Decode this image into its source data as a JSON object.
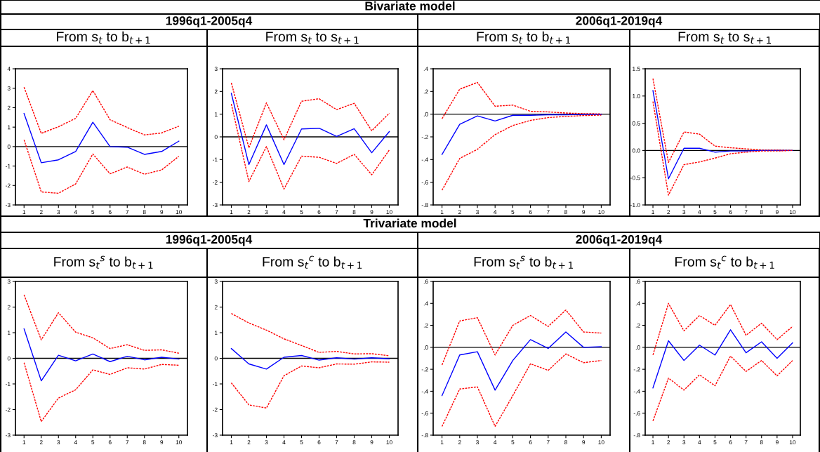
{
  "chart_data": [
    {
      "type": "line",
      "title": "From s$_{t}$ to b$_{t+1}$",
      "annotations": [
        "Bivariate model",
        "1996q1-2005q4"
      ],
      "categories": [
        "1",
        "2",
        "3",
        "4",
        "5",
        "6",
        "7",
        "8",
        "9",
        "10"
      ],
      "ylim": [
        -3,
        4
      ],
      "yticks": [
        -3,
        -2,
        -1,
        0,
        1,
        2,
        3,
        4
      ],
      "grid": false,
      "ref_lines": [
        {
          "axis": "y",
          "value": 0,
          "color": "#000000"
        }
      ],
      "series": [
        {
          "color": "#ff0000",
          "line_style": "dashed",
          "values": [
            3.05,
            0.68,
            1.02,
            1.45,
            2.88,
            1.38,
            0.98,
            0.6,
            0.7,
            1.05
          ]
        },
        {
          "color": "#0000ff",
          "line_style": "solid",
          "values": [
            1.7,
            -0.83,
            -0.68,
            -0.25,
            1.25,
            0,
            -0.03,
            -0.4,
            -0.25,
            0.28
          ]
        },
        {
          "color": "#ff0000",
          "line_style": "dashed",
          "values": [
            0.35,
            -2.33,
            -2.4,
            -1.92,
            -0.38,
            -1.4,
            -1.05,
            -1.42,
            -1.2,
            -0.5
          ]
        }
      ]
    },
    {
      "type": "line",
      "title": "From s$_{t}$ to s$_{t+1}$",
      "categories": [
        "1",
        "2",
        "3",
        "4",
        "5",
        "6",
        "7",
        "8",
        "9",
        "10"
      ],
      "ylim": [
        -3,
        3
      ],
      "yticks": [
        -3,
        -2,
        -1,
        0,
        1,
        2,
        3
      ],
      "grid": false,
      "ref_lines": [
        {
          "axis": "y",
          "value": 0,
          "color": "#000000"
        }
      ],
      "series": [
        {
          "color": "#ff0000",
          "line_style": "dashed",
          "values": [
            2.38,
            -0.48,
            1.5,
            -0.13,
            1.57,
            1.68,
            1.2,
            1.48,
            0.27,
            1.04
          ]
        },
        {
          "color": "#0000ff",
          "line_style": "solid",
          "values": [
            1.92,
            -1.22,
            0.53,
            -1.22,
            0.35,
            0.38,
            0.02,
            0.36,
            -0.7,
            0.23
          ]
        },
        {
          "color": "#ff0000",
          "line_style": "dashed",
          "values": [
            1.45,
            -1.97,
            -0.43,
            -2.3,
            -0.85,
            -0.9,
            -1.17,
            -0.77,
            -1.67,
            -0.58
          ]
        }
      ]
    },
    {
      "type": "line",
      "title": "From s$_{t}$ to b$_{t+1}$",
      "annotations": [
        "2006q1-2019q4"
      ],
      "categories": [
        "1",
        "2",
        "3",
        "4",
        "5",
        "6",
        "7",
        "8",
        "9",
        "10"
      ],
      "ylim": [
        -0.8,
        0.4
      ],
      "yticks": [
        {
          "value": -0.8,
          "label": "-.8"
        },
        {
          "value": -0.6,
          "label": "-.6"
        },
        {
          "value": -0.4,
          "label": "-.4"
        },
        {
          "value": -0.2,
          "label": "-.2"
        },
        {
          "value": 0,
          "label": ".0"
        },
        {
          "value": 0.2,
          "label": ".2"
        },
        {
          "value": 0.4,
          "label": ".4"
        }
      ],
      "grid": false,
      "ref_lines": [
        {
          "axis": "y",
          "value": 0,
          "color": "#000000"
        }
      ],
      "series": [
        {
          "color": "#ff0000",
          "line_style": "dashed",
          "values": [
            -0.04,
            0.22,
            0.28,
            0.07,
            0.08,
            0.025,
            0.02,
            0.01,
            0.005,
            0.003
          ]
        },
        {
          "color": "#0000ff",
          "line_style": "solid",
          "values": [
            -0.355,
            -0.09,
            -0.015,
            -0.06,
            -0.01,
            -0.01,
            -0.005,
            -0.005,
            -0.003,
            -0.002
          ]
        },
        {
          "color": "#ff0000",
          "line_style": "dashed",
          "values": [
            -0.67,
            -0.39,
            -0.31,
            -0.18,
            -0.1,
            -0.055,
            -0.03,
            -0.02,
            -0.012,
            -0.008
          ]
        }
      ]
    },
    {
      "type": "line",
      "title": "From s$_{t}$ to s$_{t+1}$",
      "categories": [
        "1",
        "2",
        "3",
        "4",
        "5",
        "6",
        "7",
        "8",
        "9",
        "10"
      ],
      "ylim": [
        -1.0,
        1.5
      ],
      "yticks": [
        {
          "value": -1.0,
          "label": "-1.0"
        },
        {
          "value": -0.5,
          "label": "-0.5"
        },
        {
          "value": 0,
          "label": "0.0"
        },
        {
          "value": 0.5,
          "label": "0.5"
        },
        {
          "value": 1.0,
          "label": "1.0"
        },
        {
          "value": 1.5,
          "label": "1.5"
        }
      ],
      "grid": false,
      "ref_lines": [
        {
          "axis": "y",
          "value": 0,
          "color": "#000000"
        }
      ],
      "series": [
        {
          "color": "#ff0000",
          "line_style": "dashed",
          "values": [
            1.32,
            -0.22,
            0.34,
            0.3,
            0.08,
            0.05,
            0.03,
            0.01,
            0.01,
            0
          ]
        },
        {
          "color": "#0000ff",
          "line_style": "solid",
          "values": [
            1.1,
            -0.52,
            0.04,
            0.04,
            -0.03,
            -0.01,
            -0.01,
            0,
            0,
            0
          ]
        },
        {
          "color": "#ff0000",
          "line_style": "dashed",
          "values": [
            0.9,
            -0.82,
            -0.26,
            -0.21,
            -0.14,
            -0.06,
            -0.03,
            -0.01,
            -0.01,
            0
          ]
        }
      ]
    },
    {
      "type": "line",
      "title": "From s$_{t}$$^{s}$ to b$_{t+1}$",
      "annotations": [
        "Trivariate model",
        "1996q1-2005q4"
      ],
      "categories": [
        "1",
        "2",
        "3",
        "4",
        "5",
        "6",
        "7",
        "8",
        "9",
        "10"
      ],
      "ylim": [
        -3,
        3
      ],
      "yticks": [
        -3,
        -2,
        -1,
        0,
        1,
        2,
        3
      ],
      "grid": false,
      "ref_lines": [
        {
          "axis": "y",
          "value": 0,
          "color": "#000000"
        }
      ],
      "series": [
        {
          "color": "#ff0000",
          "line_style": "dashed",
          "values": [
            2.48,
            0.72,
            1.78,
            1.02,
            0.8,
            0.38,
            0.53,
            0.31,
            0.33,
            0.2
          ]
        },
        {
          "color": "#0000ff",
          "line_style": "solid",
          "values": [
            1.15,
            -0.88,
            0.12,
            -0.1,
            0.17,
            -0.13,
            0.08,
            -0.06,
            0.04,
            -0.03
          ]
        },
        {
          "color": "#ff0000",
          "line_style": "dashed",
          "values": [
            -0.17,
            -2.47,
            -1.55,
            -1.23,
            -0.45,
            -0.63,
            -0.37,
            -0.42,
            -0.24,
            -0.27
          ]
        }
      ]
    },
    {
      "type": "line",
      "title": "From s$_{t}$$^{c}$ to b$_{t+1}$",
      "categories": [
        "1",
        "2",
        "3",
        "4",
        "5",
        "6",
        "7",
        "8",
        "9",
        "10"
      ],
      "ylim": [
        -3,
        3
      ],
      "yticks": [
        -3,
        -2,
        -1,
        0,
        1,
        2,
        3
      ],
      "grid": false,
      "ref_lines": [
        {
          "axis": "y",
          "value": 0,
          "color": "#000000"
        }
      ],
      "series": [
        {
          "color": "#ff0000",
          "line_style": "dashed",
          "values": [
            1.75,
            1.38,
            1.1,
            0.76,
            0.5,
            0.23,
            0.27,
            0.17,
            0.18,
            0.1
          ]
        },
        {
          "color": "#0000ff",
          "line_style": "solid",
          "values": [
            0.38,
            -0.22,
            -0.42,
            0.04,
            0.11,
            -0.07,
            0.02,
            -0.03,
            0.02,
            -0.02
          ]
        },
        {
          "color": "#ff0000",
          "line_style": "dashed",
          "values": [
            -0.96,
            -1.82,
            -1.94,
            -0.68,
            -0.3,
            -0.37,
            -0.22,
            -0.23,
            -0.14,
            -0.15
          ]
        }
      ]
    },
    {
      "type": "line",
      "title": "From s$_{t}$$^{s}$ to b$_{t+1}$",
      "annotations": [
        "2006q1-2019q4"
      ],
      "categories": [
        "1",
        "2",
        "3",
        "4",
        "5",
        "6",
        "7",
        "8",
        "9",
        "10"
      ],
      "ylim": [
        -0.8,
        0.6
      ],
      "yticks": [
        {
          "value": -0.8,
          "label": "-.8"
        },
        {
          "value": -0.6,
          "label": "-.6"
        },
        {
          "value": -0.4,
          "label": "-.4"
        },
        {
          "value": -0.2,
          "label": "-.2"
        },
        {
          "value": 0,
          "label": ".0"
        },
        {
          "value": 0.2,
          "label": ".2"
        },
        {
          "value": 0.4,
          "label": ".4"
        },
        {
          "value": 0.6,
          "label": ".6"
        }
      ],
      "grid": false,
      "ref_lines": [
        {
          "axis": "y",
          "value": 0,
          "color": "#000000"
        }
      ],
      "series": [
        {
          "color": "#ff0000",
          "line_style": "dashed",
          "values": [
            -0.16,
            0.24,
            0.27,
            -0.07,
            0.2,
            0.29,
            0.19,
            0.34,
            0.14,
            0.13
          ]
        },
        {
          "color": "#0000ff",
          "line_style": "solid",
          "values": [
            -0.44,
            -0.07,
            -0.04,
            -0.39,
            -0.12,
            0.07,
            -0.01,
            0.14,
            0,
            0.005
          ]
        },
        {
          "color": "#ff0000",
          "line_style": "dashed",
          "values": [
            -0.72,
            -0.38,
            -0.36,
            -0.72,
            -0.44,
            -0.15,
            -0.21,
            -0.06,
            -0.14,
            -0.12
          ]
        }
      ]
    },
    {
      "type": "line",
      "title": "From s$_{t}$$^{c}$ to b$_{t+1}$",
      "categories": [
        "1",
        "2",
        "3",
        "4",
        "5",
        "6",
        "7",
        "8",
        "9",
        "10"
      ],
      "ylim": [
        -0.8,
        0.6
      ],
      "yticks": [
        {
          "value": -0.8,
          "label": "-.8"
        },
        {
          "value": -0.6,
          "label": "-.6"
        },
        {
          "value": -0.4,
          "label": "-.4"
        },
        {
          "value": -0.2,
          "label": "-.2"
        },
        {
          "value": 0,
          "label": ".0"
        },
        {
          "value": 0.2,
          "label": ".2"
        },
        {
          "value": 0.4,
          "label": ".4"
        },
        {
          "value": 0.6,
          "label": ".6"
        }
      ],
      "grid": false,
      "ref_lines": [
        {
          "axis": "y",
          "value": 0,
          "color": "#000000"
        }
      ],
      "series": [
        {
          "color": "#ff0000",
          "line_style": "dashed",
          "values": [
            -0.07,
            0.4,
            0.15,
            0.29,
            0.2,
            0.39,
            0.11,
            0.22,
            0.07,
            0.19
          ]
        },
        {
          "color": "#0000ff",
          "line_style": "solid",
          "values": [
            -0.37,
            0.06,
            -0.12,
            0.02,
            -0.07,
            0.16,
            -0.05,
            0.05,
            -0.1,
            0.04
          ]
        },
        {
          "color": "#ff0000",
          "line_style": "dashed",
          "values": [
            -0.67,
            -0.28,
            -0.39,
            -0.25,
            -0.35,
            -0.08,
            -0.22,
            -0.12,
            -0.26,
            -0.12
          ]
        }
      ]
    }
  ]
}
